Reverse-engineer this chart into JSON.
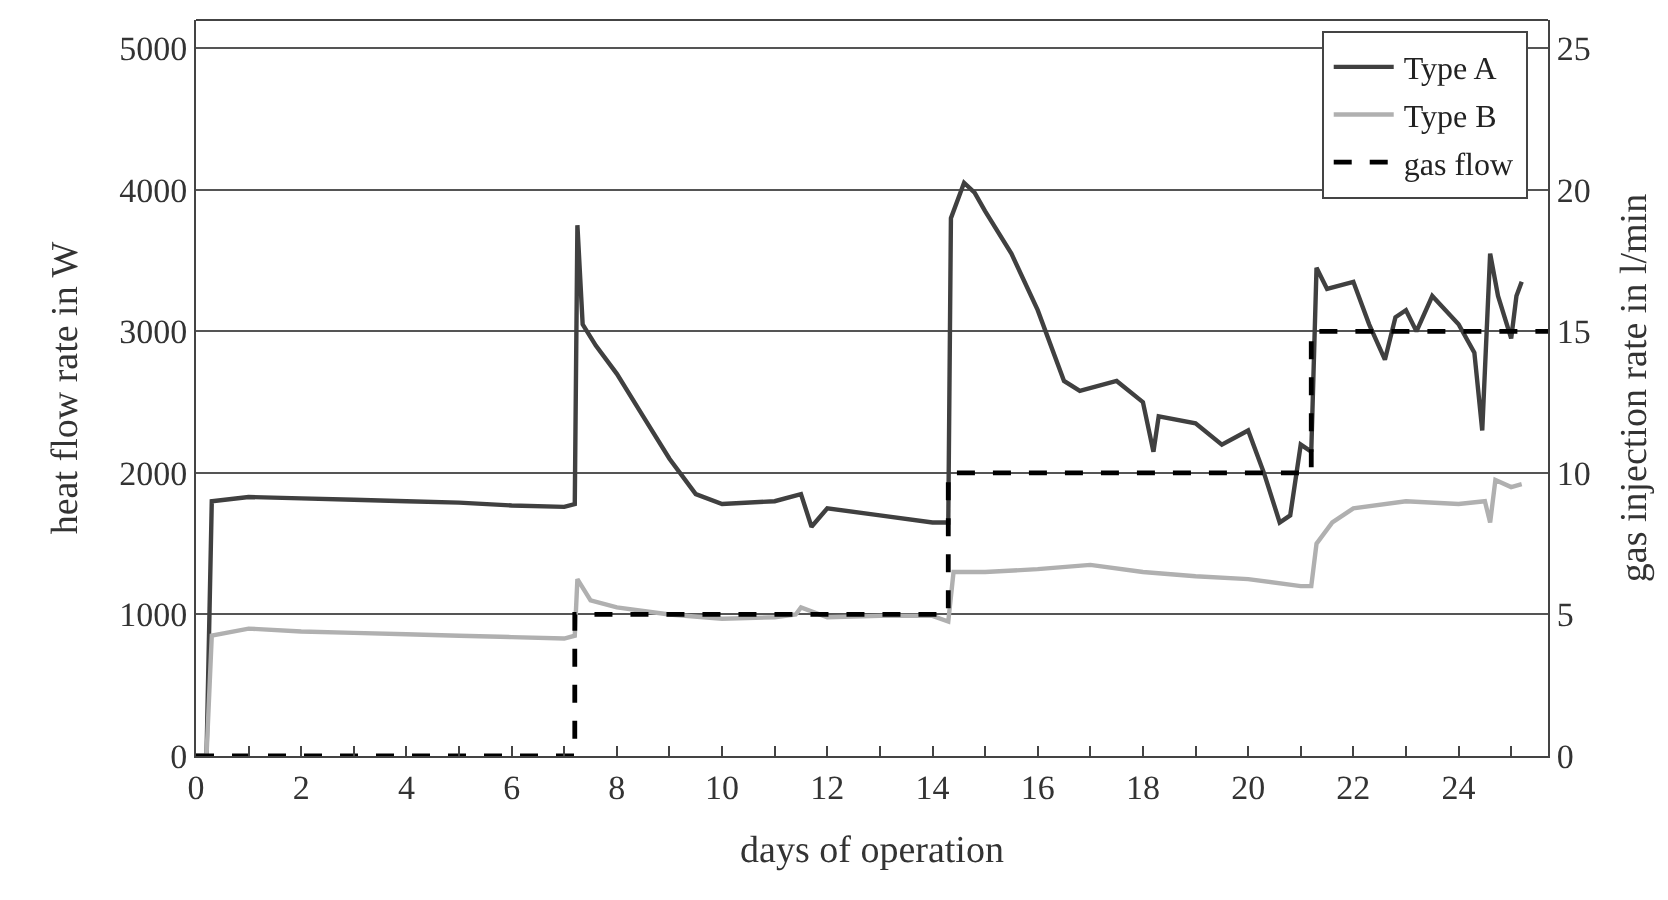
{
  "chart_data": {
    "type": "line",
    "xlabel": "days of operation",
    "ylabel": "heat flow rate in W",
    "y2label": "gas injection rate in l/min",
    "xlim": [
      0,
      25.7
    ],
    "ylim": [
      0,
      5200
    ],
    "y2lim": [
      0,
      26
    ],
    "xticks": [
      0,
      {
        "value": 1,
        "label": null
      },
      2,
      {
        "value": 3,
        "label": null
      },
      4,
      {
        "value": 5,
        "label": null
      },
      6,
      {
        "value": 7,
        "label": null
      },
      8,
      {
        "value": 9,
        "label": null
      },
      10,
      {
        "value": 11,
        "label": null
      },
      12,
      {
        "value": 13,
        "label": null
      },
      14,
      {
        "value": 15,
        "label": null
      },
      16,
      {
        "value": 17,
        "label": null
      },
      18,
      {
        "value": 19,
        "label": null
      },
      20,
      {
        "value": 21,
        "label": null
      },
      22,
      {
        "value": 23,
        "label": null
      },
      24,
      {
        "value": 25,
        "label": null
      }
    ],
    "yticks": [
      0,
      1000,
      2000,
      3000,
      4000,
      5000
    ],
    "y2ticks": [
      0,
      5,
      10,
      15,
      20,
      25
    ],
    "grid": "y",
    "legend": "top right",
    "series": [
      {
        "name": "Type A",
        "color": "#404040",
        "line_style": "solid",
        "x": [
          0,
          0.2,
          0.3,
          1,
          2,
          3,
          4,
          5,
          6,
          7,
          7.2,
          7.25,
          7.35,
          7.6,
          8,
          8.5,
          9,
          9.5,
          10,
          11,
          11.5,
          11.7,
          12,
          13,
          14,
          14.3,
          14.35,
          14.6,
          14.8,
          15,
          15.5,
          16,
          16.5,
          16.8,
          17.5,
          18,
          18.2,
          18.3,
          19,
          19.5,
          20,
          20.3,
          20.6,
          20.8,
          21,
          21.2,
          21.3,
          21.5,
          22,
          22.3,
          22.6,
          22.8,
          23,
          23.2,
          23.5,
          24,
          24.3,
          24.45,
          24.6,
          24.75,
          25,
          25.1,
          25.2
        ],
        "values": [
          0,
          0,
          1800,
          1830,
          1820,
          1810,
          1800,
          1790,
          1770,
          1760,
          1780,
          3750,
          3050,
          2900,
          2700,
          2400,
          2100,
          1850,
          1780,
          1800,
          1850,
          1620,
          1750,
          1700,
          1650,
          1650,
          3800,
          4050,
          3980,
          3850,
          3550,
          3150,
          2650,
          2580,
          2650,
          2500,
          2150,
          2400,
          2350,
          2200,
          2300,
          2000,
          1650,
          1700,
          2200,
          2150,
          3450,
          3300,
          3350,
          3050,
          2800,
          3100,
          3150,
          3000,
          3250,
          3050,
          2850,
          2300,
          3550,
          3250,
          2950,
          3250,
          3350
        ]
      },
      {
        "name": "Type B",
        "color": "#b0b0b0",
        "line_style": "solid",
        "x": [
          0,
          0.2,
          0.3,
          1,
          2,
          3,
          4,
          5,
          6,
          7,
          7.2,
          7.25,
          7.5,
          8,
          9,
          10,
          11,
          11.4,
          11.5,
          12,
          13,
          14,
          14.3,
          14.4,
          15,
          16,
          17,
          18,
          19,
          20,
          21,
          21.2,
          21.3,
          21.6,
          22,
          23,
          24,
          24.5,
          24.6,
          24.7,
          25,
          25.2
        ],
        "values": [
          0,
          0,
          850,
          900,
          880,
          870,
          860,
          850,
          840,
          830,
          850,
          1250,
          1100,
          1050,
          1000,
          970,
          980,
          1000,
          1050,
          980,
          990,
          990,
          950,
          1300,
          1300,
          1320,
          1350,
          1300,
          1270,
          1250,
          1200,
          1200,
          1500,
          1650,
          1750,
          1800,
          1780,
          1800,
          1650,
          1950,
          1900,
          1920
        ]
      },
      {
        "name": "gas flow",
        "color": "#000000",
        "line_style": "dashed",
        "type": "step",
        "axis": "y2",
        "x": [
          0,
          7.2,
          14.3,
          21.2,
          25.7
        ],
        "values": [
          0,
          5,
          10,
          15,
          15
        ]
      }
    ]
  }
}
